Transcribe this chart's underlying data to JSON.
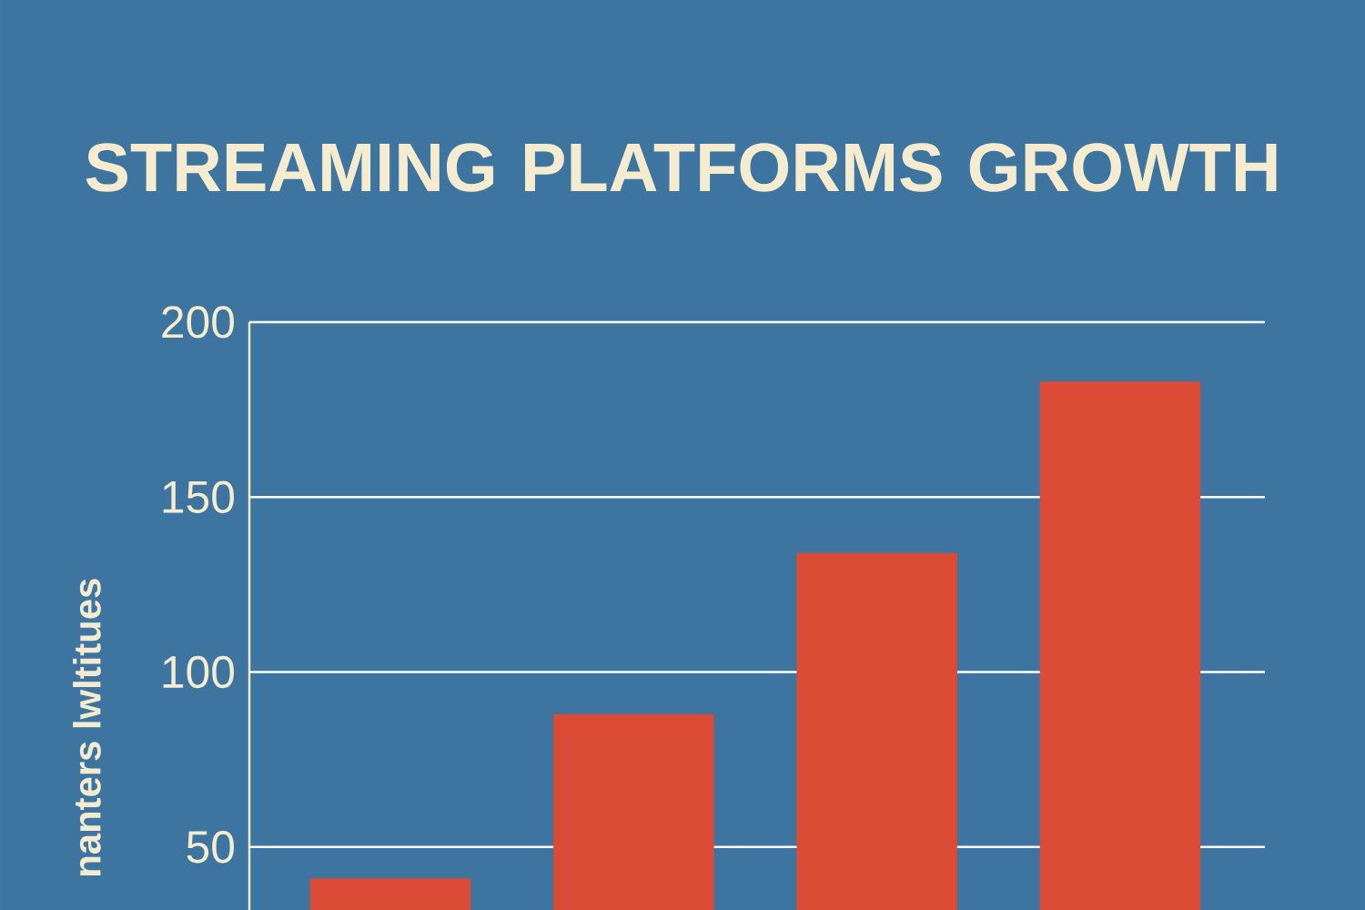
{
  "chart_data": {
    "type": "bar",
    "title": "STREAMING PLATFORMS GROWTH",
    "ylabel": "nanters lwltitues",
    "categories": [
      null,
      null,
      null,
      null
    ],
    "series": [
      {
        "color": "#dc4b35",
        "values": [
          41,
          88,
          134,
          183
        ]
      }
    ],
    "ylim": [
      32,
      200
    ],
    "yticks": [
      50,
      100,
      150,
      200
    ],
    "grid": "y"
  }
}
